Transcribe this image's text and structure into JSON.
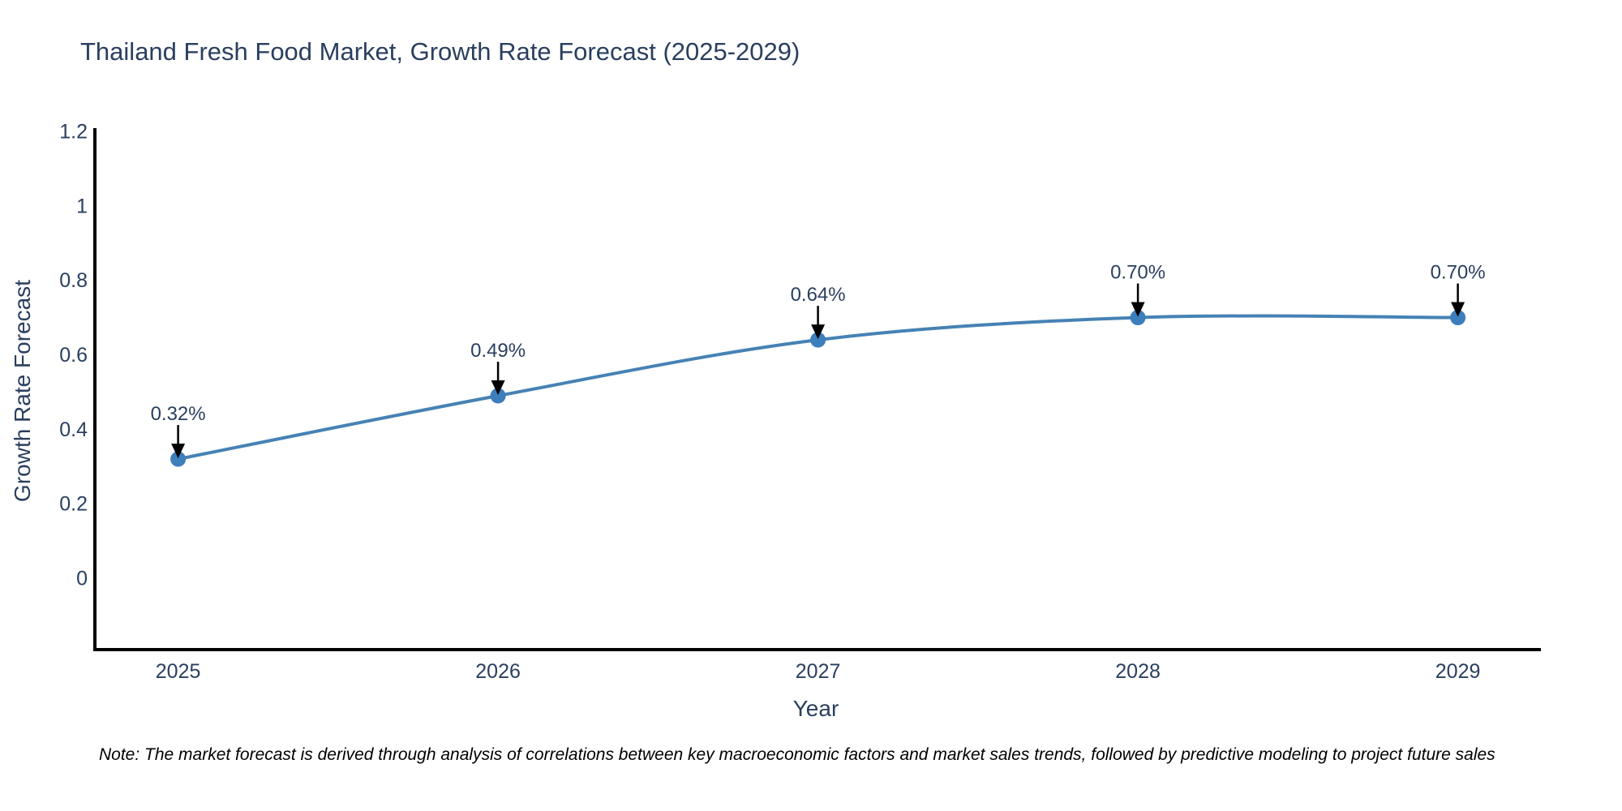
{
  "note": "Note: The market forecast is derived through analysis of correlations between key macroeconomic factors and market sales trends, followed by predictive modeling to project future sales",
  "chart_data": {
    "type": "line",
    "title": "Thailand Fresh Food Market, Growth Rate Forecast (2025-2029)",
    "xlabel": "Year",
    "ylabel": "Growth Rate Forecast",
    "categories": [
      "2025",
      "2026",
      "2027",
      "2028",
      "2029"
    ],
    "values": [
      0.32,
      0.49,
      0.64,
      0.7,
      0.7
    ],
    "point_labels": [
      "0.32%",
      "0.49%",
      "0.64%",
      "0.70%",
      "0.70%"
    ],
    "yticks": [
      "0",
      "0.2",
      "0.4",
      "0.6",
      "0.8",
      "1",
      "1.2"
    ],
    "ylim": [
      -0.19,
      1.29
    ],
    "line_shape": "spline",
    "grid": false,
    "legend": "none",
    "annotations_style": "value label with black down-arrow pointing at each marker",
    "colors": {
      "line": "#4682b4",
      "marker": "#3d7ebd",
      "axis": "#000000",
      "label_text": "#2a3f5f",
      "arrow": "#000000",
      "background": "#ffffff"
    }
  }
}
